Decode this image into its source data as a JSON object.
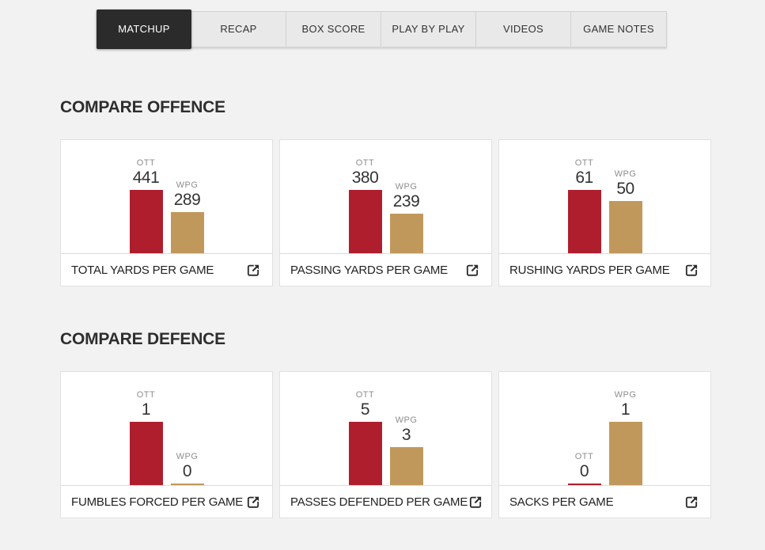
{
  "tabs": [
    {
      "label": "MATCHUP",
      "active": true
    },
    {
      "label": "RECAP",
      "active": false
    },
    {
      "label": "BOX SCORE",
      "active": false
    },
    {
      "label": "PLAY BY PLAY",
      "active": false
    },
    {
      "label": "VIDEOS",
      "active": false
    },
    {
      "label": "GAME NOTES",
      "active": false
    }
  ],
  "sections": [
    {
      "title": "COMPARE OFFENCE",
      "card_indexes": [
        0,
        1,
        2
      ]
    },
    {
      "title": "COMPARE DEFENCE",
      "card_indexes": [
        3,
        4,
        5
      ]
    }
  ],
  "chart_data": [
    {
      "type": "bar",
      "title": "TOTAL YARDS PER GAME",
      "categories": [
        "OTT",
        "WPG"
      ],
      "values": [
        441,
        289
      ]
    },
    {
      "type": "bar",
      "title": "PASSING YARDS PER GAME",
      "categories": [
        "OTT",
        "WPG"
      ],
      "values": [
        380,
        239
      ]
    },
    {
      "type": "bar",
      "title": "RUSHING YARDS PER GAME",
      "categories": [
        "OTT",
        "WPG"
      ],
      "values": [
        61,
        50
      ]
    },
    {
      "type": "bar",
      "title": "FUMBLES FORCED PER GAME",
      "categories": [
        "OTT",
        "WPG"
      ],
      "values": [
        1,
        0
      ]
    },
    {
      "type": "bar",
      "title": "PASSES DEFENDED PER GAME",
      "categories": [
        "OTT",
        "WPG"
      ],
      "values": [
        5,
        3
      ]
    },
    {
      "type": "bar",
      "title": "SACKS PER GAME",
      "categories": [
        "OTT",
        "WPG"
      ],
      "values": [
        0,
        1
      ]
    }
  ],
  "colors": {
    "team_colors": {
      "OTT": "#af1e2d",
      "WPG": "#c1985c"
    },
    "page_bg": "#f2f2f2",
    "tab_active_bg": "#2b2b2b",
    "tab_inactive_bg": "#e9e9e9"
  },
  "icons": {
    "share": "box-with-arrow-top-right"
  }
}
